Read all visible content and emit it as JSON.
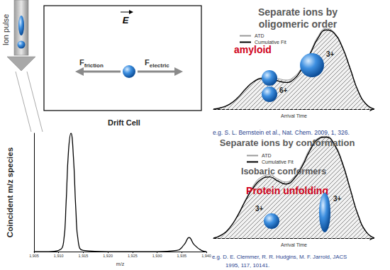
{
  "chart_data": [
    {
      "type": "line",
      "x_label": "m/z",
      "y_label": "Coincident m/z species",
      "x": [
        1905,
        1908,
        1910,
        1911,
        1911.5,
        1912,
        1912.5,
        1913,
        1913.5,
        1914,
        1915,
        1920,
        1925,
        1930,
        1934,
        1935.5,
        1936.5,
        1937.5,
        1939,
        1940
      ],
      "values": [
        0,
        0,
        1,
        8,
        40,
        85,
        100,
        80,
        35,
        8,
        1,
        0,
        0,
        0,
        1,
        6,
        12,
        6,
        1,
        0
      ],
      "color": "#000000",
      "xlim": [
        1905,
        1940
      ],
      "xticks": [
        1905,
        1910,
        1915,
        1920,
        1925,
        1930,
        1935,
        1940
      ],
      "ylim": [
        0,
        100
      ],
      "tick_labels": "x",
      "grid": false
    },
    {
      "type": "line",
      "x_label": "Arrival Time",
      "x": [
        0,
        5,
        10,
        15,
        20,
        25,
        30,
        35,
        40,
        45,
        50,
        55,
        60,
        65,
        70,
        75,
        80,
        85,
        90,
        95,
        100
      ],
      "series": [
        {
          "name": "ATD",
          "color": "#9a9a9a",
          "values": [
            0,
            0.02,
            0.06,
            0.14,
            0.25,
            0.34,
            0.39,
            0.4,
            0.38,
            0.36,
            0.4,
            0.52,
            0.7,
            0.9,
            1.0,
            0.95,
            0.78,
            0.5,
            0.22,
            0.06,
            0
          ]
        },
        {
          "name": "Cumulative Fit",
          "color": "#000000",
          "values": [
            0,
            0.02,
            0.06,
            0.14,
            0.25,
            0.34,
            0.38,
            0.38,
            0.35,
            0.33,
            0.37,
            0.5,
            0.68,
            0.88,
            0.98,
            0.94,
            0.77,
            0.5,
            0.22,
            0.06,
            0
          ]
        }
      ],
      "xlim": [
        0,
        100
      ],
      "ylim": [
        0,
        1
      ],
      "tick_labels": false,
      "grid": false,
      "legend": "top-left"
    },
    {
      "type": "line",
      "x_label": "Arrival Time",
      "x": [
        0,
        5,
        10,
        15,
        20,
        25,
        30,
        35,
        40,
        45,
        50,
        55,
        60,
        65,
        70,
        75,
        80,
        85,
        90,
        95,
        100
      ],
      "series": [
        {
          "name": "ATD",
          "color": "#9a9a9a",
          "values": [
            0,
            0.03,
            0.1,
            0.22,
            0.38,
            0.52,
            0.6,
            0.62,
            0.58,
            0.55,
            0.6,
            0.72,
            0.88,
            0.98,
            1.0,
            0.93,
            0.75,
            0.48,
            0.22,
            0.06,
            0
          ]
        },
        {
          "name": "Cumulative Fit",
          "color": "#000000",
          "values": [
            0,
            0.03,
            0.1,
            0.22,
            0.37,
            0.5,
            0.58,
            0.6,
            0.56,
            0.53,
            0.58,
            0.7,
            0.86,
            0.97,
            0.99,
            0.92,
            0.74,
            0.48,
            0.22,
            0.06,
            0
          ]
        }
      ],
      "xlim": [
        0,
        100
      ],
      "ylim": [
        0,
        1
      ],
      "tick_labels": false,
      "grid": false,
      "legend": "top-left"
    }
  ],
  "diagram": {
    "ion_pulse": "Ion pulse",
    "drift_cell": {
      "label": "Drift Cell",
      "field": "E",
      "forces": [
        {
          "symbol": "F",
          "subscript": "friction"
        },
        {
          "symbol": "F",
          "subscript": "electric"
        }
      ]
    },
    "panels": [
      {
        "heading": [
          "Separate ions by",
          "oligomeric order"
        ],
        "tag": "amyloid",
        "ions": [
          "6+",
          "3+"
        ],
        "citation": [
          "e.g. S. L. Bernstein et al., Nat. Chem. 2009, 1, 326."
        ]
      },
      {
        "heading": [
          "Separate ions by conformation",
          "Isobaric conformers"
        ],
        "tag": "Protein unfolding",
        "ions": [
          "3+",
          "3+"
        ],
        "citation": [
          "e.g. D. E. Clemmer, R. R. Hudgins, M. F. Jarrold, JACS",
          "1995, 117, 10141."
        ]
      }
    ]
  }
}
